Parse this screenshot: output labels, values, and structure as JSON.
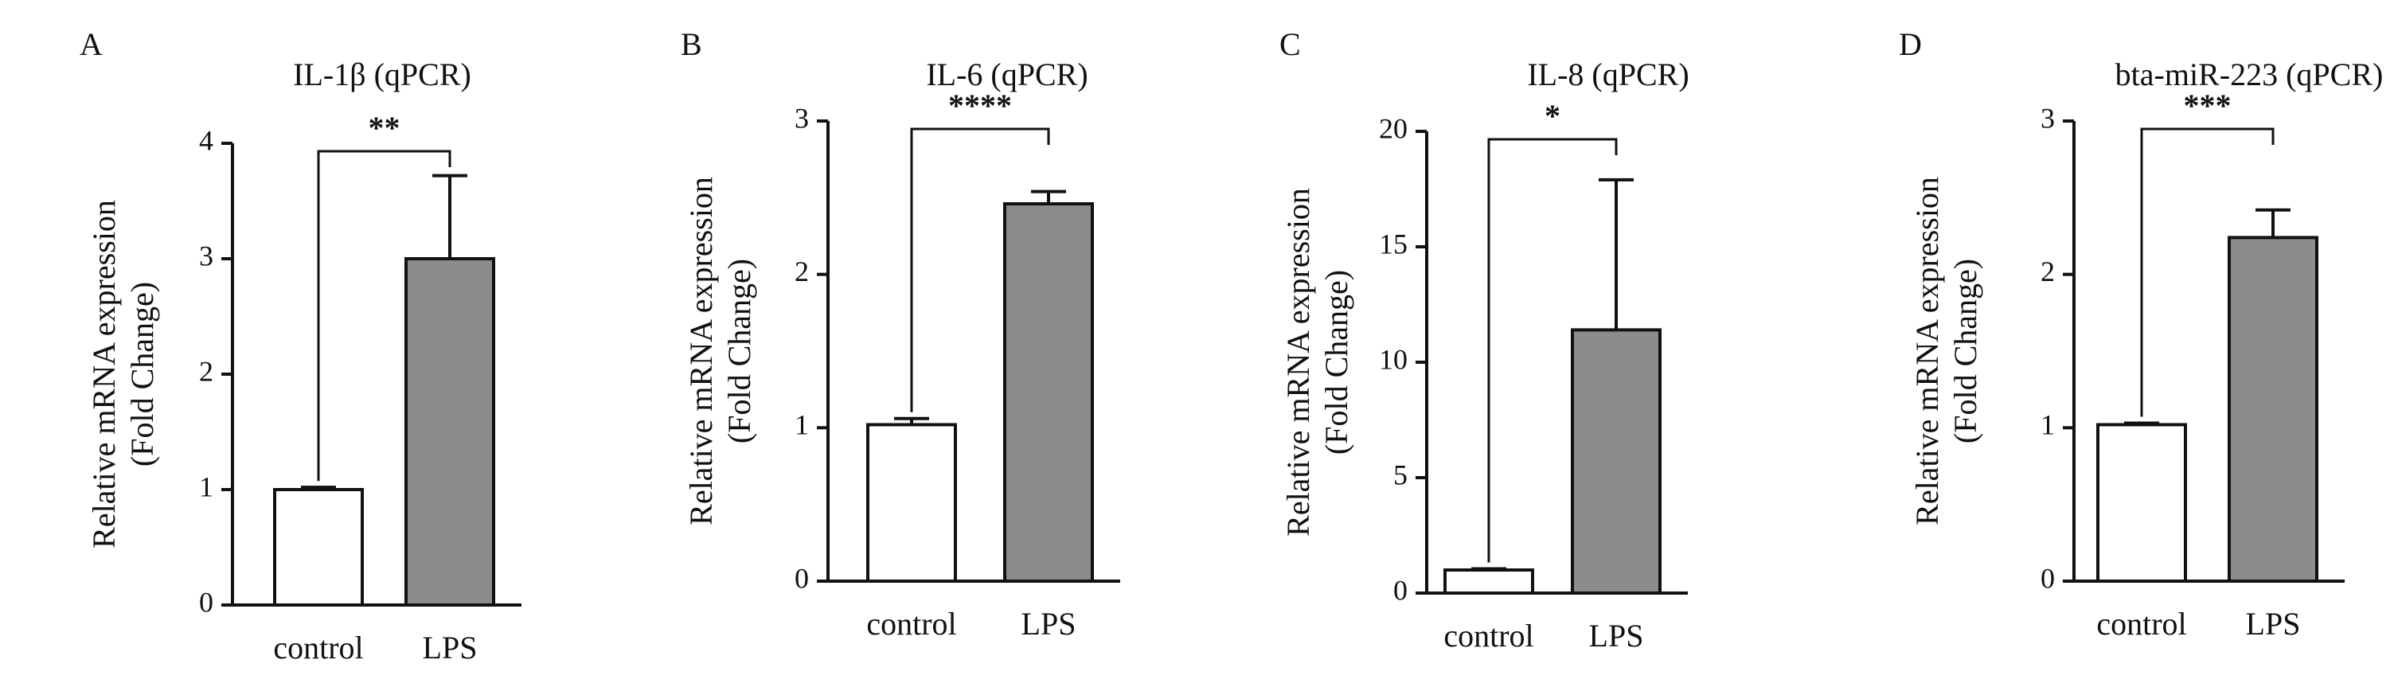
{
  "colors": {
    "control_fill": "#ffffff",
    "lps_fill": "#8c8c8c",
    "ink": "#111111"
  },
  "chart_data": [
    {
      "type": "bar",
      "panel": "A",
      "title": "IL-1β (qPCR)",
      "ylabel_lines": [
        "Relative mRNA expression",
        "(Fold Change)"
      ],
      "categories": [
        "control",
        "LPS"
      ],
      "values": [
        1.0,
        3.0
      ],
      "errors": [
        0.02,
        0.72
      ],
      "ylim": [
        0,
        4
      ],
      "yticks": [
        0,
        1,
        2,
        3,
        4
      ],
      "significance": "**"
    },
    {
      "type": "bar",
      "panel": "B",
      "title": "IL-6 (qPCR)",
      "ylabel_lines": [
        "Relative mRNA expression",
        "(Fold Change)"
      ],
      "categories": [
        "control",
        "LPS"
      ],
      "values": [
        1.02,
        2.46
      ],
      "errors": [
        0.04,
        0.08
      ],
      "ylim": [
        0,
        3
      ],
      "yticks": [
        0,
        1,
        2,
        3
      ],
      "significance": "****"
    },
    {
      "type": "bar",
      "panel": "C",
      "title": "IL-8 (qPCR)",
      "ylabel_lines": [
        "Relative mRNA expression",
        "(Fold Change)"
      ],
      "categories": [
        "control",
        "LPS"
      ],
      "values": [
        1.0,
        11.4
      ],
      "errors": [
        0.05,
        6.5
      ],
      "ylim": [
        0,
        20
      ],
      "yticks": [
        0,
        5,
        10,
        15,
        20
      ],
      "significance": "*"
    },
    {
      "type": "bar",
      "panel": "D",
      "title": "bta-miR-223 (qPCR)",
      "ylabel_lines": [
        "Relative mRNA expression",
        "(Fold Change)"
      ],
      "categories": [
        "control",
        "LPS"
      ],
      "values": [
        1.02,
        2.24
      ],
      "errors": [
        0.01,
        0.18
      ],
      "ylim": [
        0,
        3
      ],
      "yticks": [
        0,
        1,
        2,
        3
      ],
      "significance": "***"
    }
  ]
}
